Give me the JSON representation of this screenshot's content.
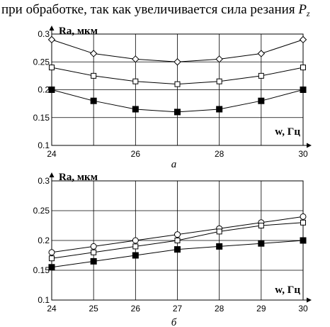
{
  "header": {
    "text": "при обработке, так как увеличивается сила резания",
    "symbol": "P",
    "subscript": "z"
  },
  "chart_data": [
    {
      "type": "line",
      "caption": "а",
      "ylabel": "Ra, мкм",
      "xlabel": "w, Гц",
      "xlim": [
        24,
        30
      ],
      "ylim": [
        0.1,
        0.3
      ],
      "x_ticks": [
        "24",
        "26",
        "28",
        "30"
      ],
      "y_ticks": [
        "0.1",
        "0.15",
        "0.2",
        "0.25",
        "0.3"
      ],
      "grid": true,
      "x": [
        24,
        25,
        26,
        27,
        28,
        29,
        30
      ],
      "series": [
        {
          "marker": "diamond-open",
          "values": [
            0.29,
            0.265,
            0.255,
            0.25,
            0.255,
            0.265,
            0.29
          ]
        },
        {
          "marker": "square-open",
          "values": [
            0.24,
            0.225,
            0.215,
            0.21,
            0.215,
            0.225,
            0.24
          ]
        },
        {
          "marker": "square-filled",
          "values": [
            0.2,
            0.18,
            0.165,
            0.16,
            0.165,
            0.18,
            0.2
          ]
        }
      ]
    },
    {
      "type": "line",
      "caption": "б",
      "ylabel": "Ra, мкм",
      "xlabel": "w, Гц",
      "xlim": [
        24,
        30
      ],
      "ylim": [
        0.1,
        0.3
      ],
      "x_ticks": [
        "24",
        "25",
        "26",
        "27",
        "28",
        "29",
        "30"
      ],
      "y_ticks": [
        "0.1",
        "0.15",
        "0.2",
        "0.25",
        "0.3"
      ],
      "grid": true,
      "x": [
        24,
        25,
        26,
        27,
        28,
        29,
        30
      ],
      "series": [
        {
          "marker": "circle-open",
          "values": [
            0.18,
            0.19,
            0.2,
            0.21,
            0.22,
            0.23,
            0.24
          ]
        },
        {
          "marker": "square-open",
          "values": [
            0.17,
            0.18,
            0.19,
            0.2,
            0.215,
            0.225,
            0.23
          ]
        },
        {
          "marker": "square-filled",
          "values": [
            0.155,
            0.165,
            0.175,
            0.185,
            0.19,
            0.195,
            0.2
          ]
        }
      ]
    }
  ]
}
